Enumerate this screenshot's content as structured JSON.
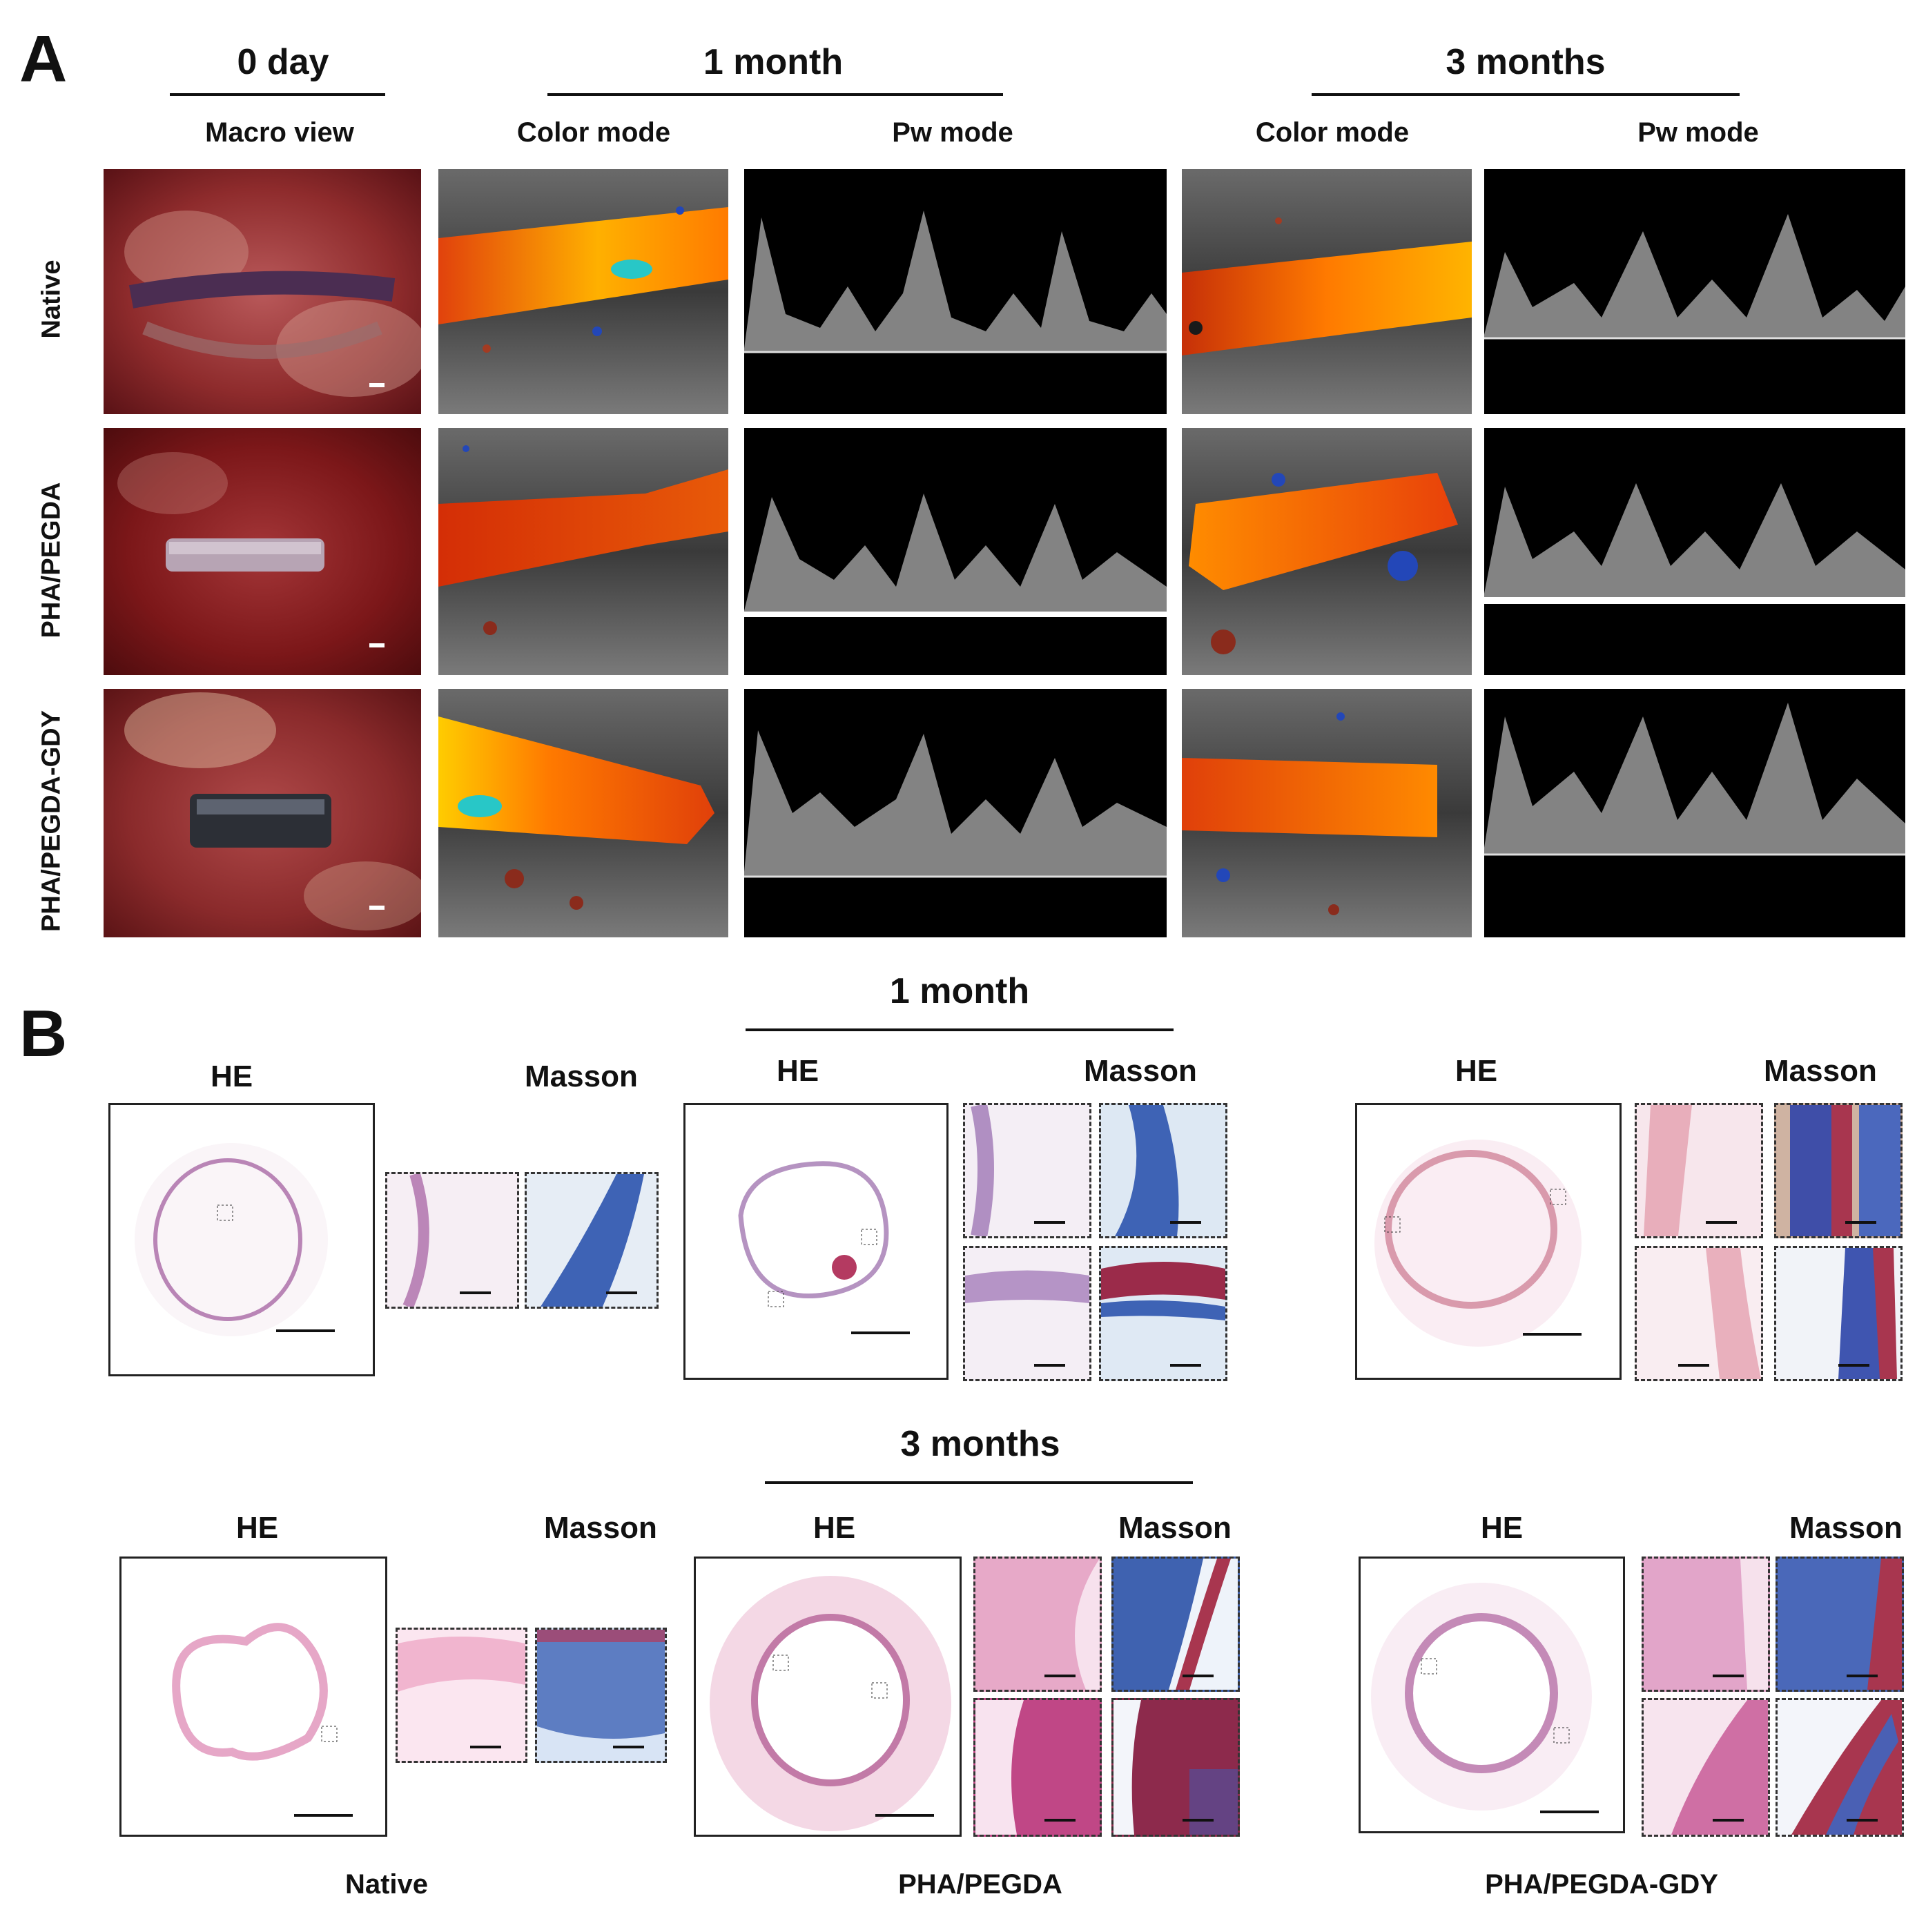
{
  "panel_a": {
    "letter": "A",
    "time_headers": {
      "day0": "0 day",
      "month1": "1 month",
      "month3": "3 months"
    },
    "column_headers": {
      "macro": "Macro view",
      "color_1m": "Color mode",
      "pw_1m": "Pw mode",
      "color_3m": "Color mode",
      "pw_3m": "Pw mode"
    },
    "rows": [
      "Native",
      "PHA/PEGDA",
      "PHA/PEGDA-GDY"
    ]
  },
  "panel_b": {
    "letter": "B",
    "time_headers": {
      "month1": "1 month",
      "month3": "3 months"
    },
    "stain_labels": {
      "he": "HE",
      "masson": "Masson"
    },
    "groups": [
      "Native",
      "PHA/PEGDA",
      "PHA/PEGDA-GDY"
    ]
  },
  "colors": {
    "tissue_red": "#8e1d1f",
    "doppler_orange": "#e84a0c",
    "he_pink": "#d68db3",
    "masson_blue": "#3e63b5"
  }
}
